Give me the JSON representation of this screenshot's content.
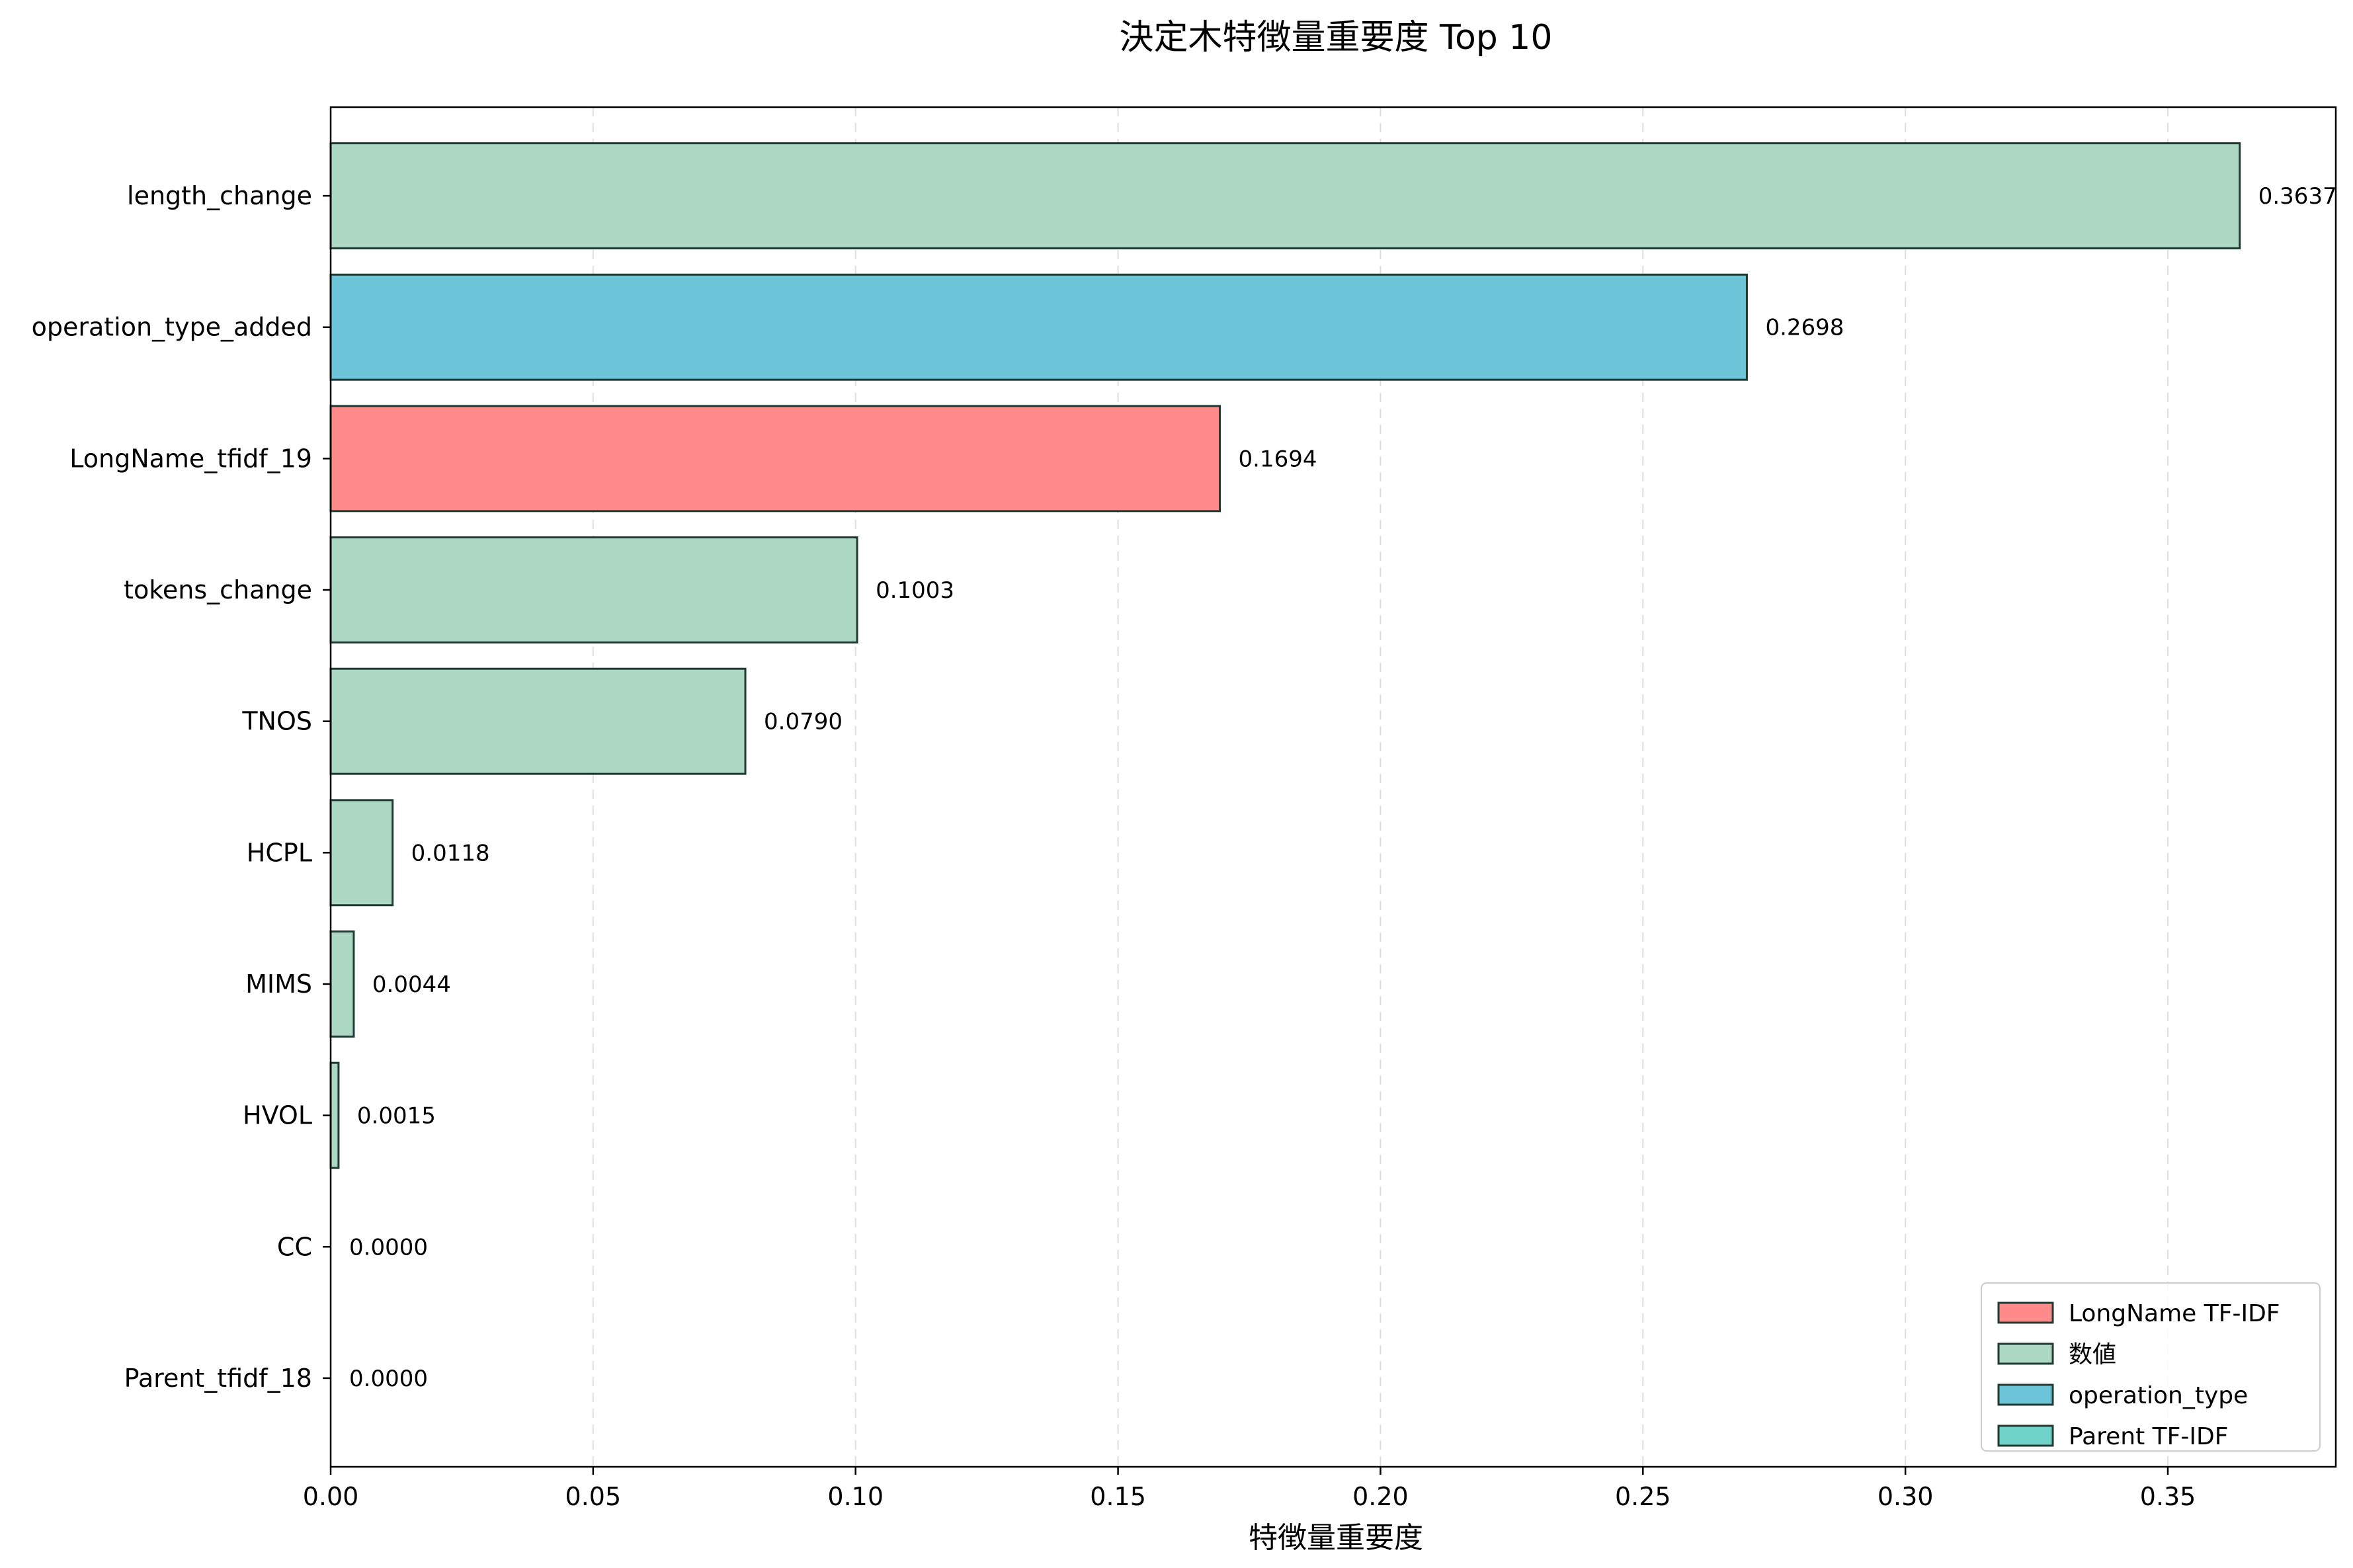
{
  "chart_data": {
    "type": "bar",
    "orientation": "horizontal",
    "title": "決定木特徴量重要度 Top 10",
    "xlabel": "特徴量重要度",
    "ylabel": "",
    "xlim": [
      0,
      0.382
    ],
    "xticks": [
      "0.00",
      "0.05",
      "0.10",
      "0.15",
      "0.20",
      "0.25",
      "0.30",
      "0.35"
    ],
    "xtick_values": [
      0,
      0.05,
      0.1,
      0.15,
      0.2,
      0.25,
      0.3,
      0.35
    ],
    "grid": "vertical dashed",
    "legend_position": "lower-right",
    "categories": [
      "length_change",
      "operation_type_added",
      "LongName_tfidf_19",
      "tokens_change",
      "TNOS",
      "HCPL",
      "MIMS",
      "HVOL",
      "CC",
      "Parent_tfidf_18"
    ],
    "values": [
      0.3637,
      0.2698,
      0.1694,
      0.1003,
      0.079,
      0.0118,
      0.0044,
      0.0015,
      0.0,
      0.0
    ],
    "value_labels": [
      "0.3637",
      "0.2698",
      "0.1694",
      "0.1003",
      "0.0790",
      "0.0118",
      "0.0044",
      "0.0015",
      "0.0000",
      "0.0000"
    ],
    "bar_groups": [
      "数値",
      "operation_type",
      "LongName TF-IDF",
      "数値",
      "数値",
      "数値",
      "数値",
      "数値",
      "数値",
      "Parent TF-IDF"
    ],
    "legend": [
      {
        "label": "LongName TF-IDF",
        "color": "#ff8a8a"
      },
      {
        "label": "数値",
        "color": "#acd7c3"
      },
      {
        "label": "operation_type",
        "color": "#6cc4d8"
      },
      {
        "label": "Parent TF-IDF",
        "color": "#70d3c9"
      }
    ],
    "colors": {
      "edge": "#1f3a33",
      "grid": "#dddddd",
      "axis": "#000000"
    }
  }
}
